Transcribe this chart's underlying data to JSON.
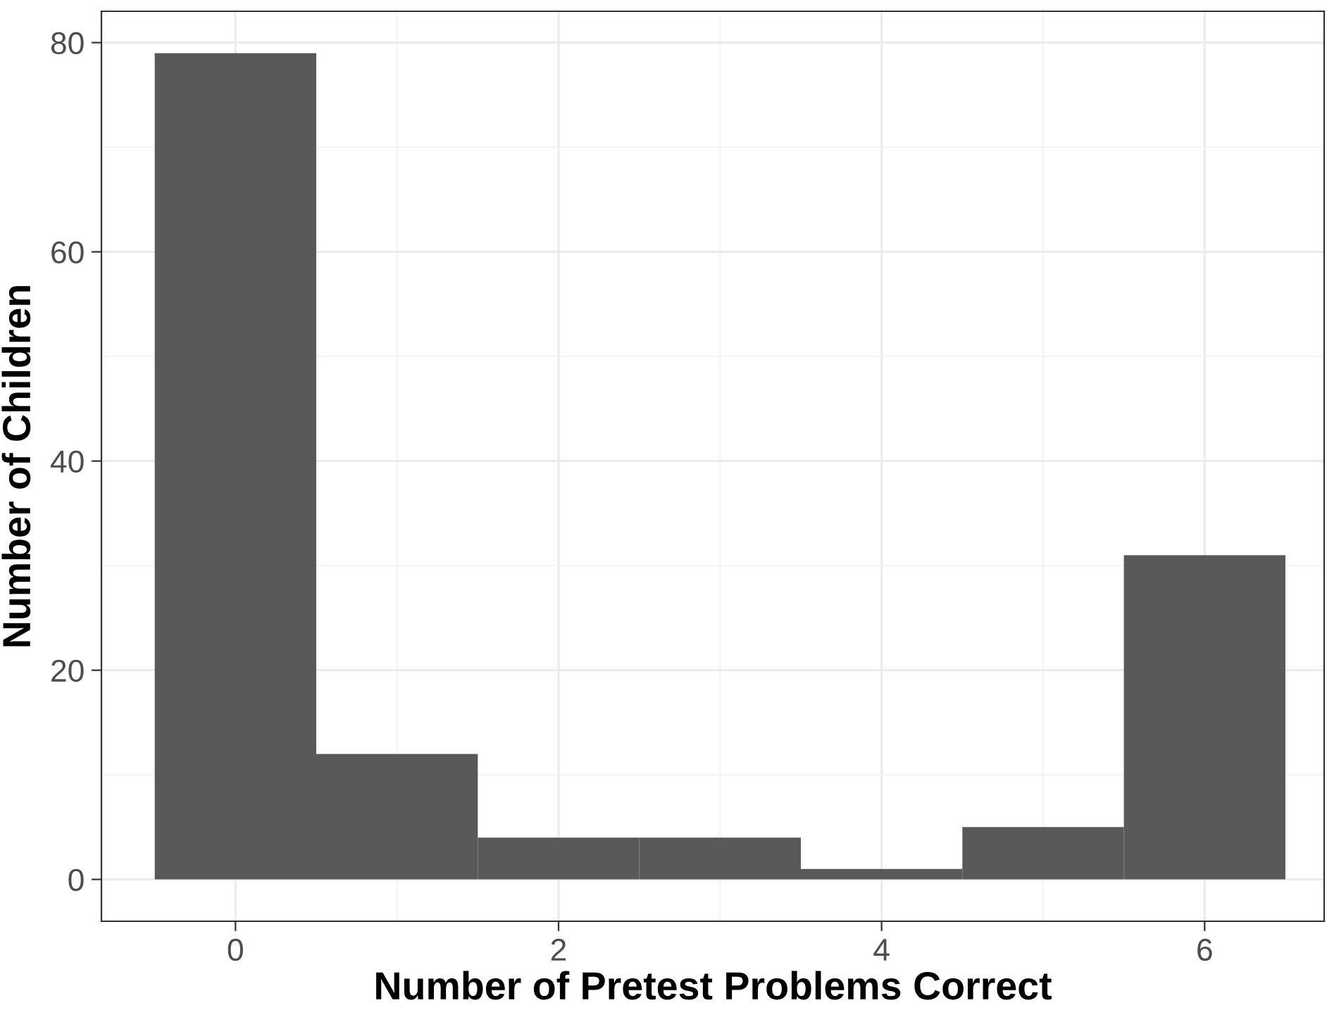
{
  "chart_data": {
    "type": "histogram",
    "xlabel": "Number of Pretest Problems Correct",
    "ylabel": "Number of Children",
    "bins": [
      -0.5,
      0.5,
      1.5,
      2.5,
      3.5,
      4.5,
      5.5,
      6.5
    ],
    "values": [
      79,
      12,
      4,
      4,
      1,
      5,
      31
    ],
    "color": "#595959",
    "xlim": [
      -0.83,
      6.74
    ],
    "ylim": [
      -4,
      83
    ],
    "xticks": [
      0,
      2,
      4,
      6
    ],
    "yticks": [
      0,
      20,
      40,
      60,
      80
    ],
    "grid": true
  }
}
